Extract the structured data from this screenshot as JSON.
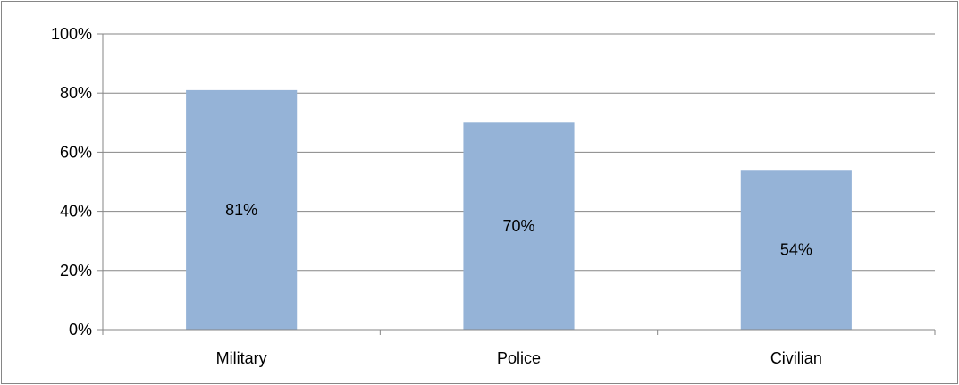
{
  "chart_data": {
    "type": "bar",
    "categories": [
      "Military",
      "Police",
      "Civilian"
    ],
    "values": [
      81,
      70,
      54
    ],
    "data_labels": [
      "81%",
      "70%",
      "54%"
    ],
    "y_ticks": [
      0,
      20,
      40,
      60,
      80,
      100
    ],
    "y_tick_labels": [
      "0%",
      "20%",
      "40%",
      "60%",
      "80%",
      "100%"
    ],
    "ylim": [
      0,
      100
    ],
    "title": "",
    "xlabel": "",
    "ylabel": "",
    "grid": true,
    "legend": "none",
    "bar_color": "#95B3D7",
    "grid_color": "#868686"
  }
}
